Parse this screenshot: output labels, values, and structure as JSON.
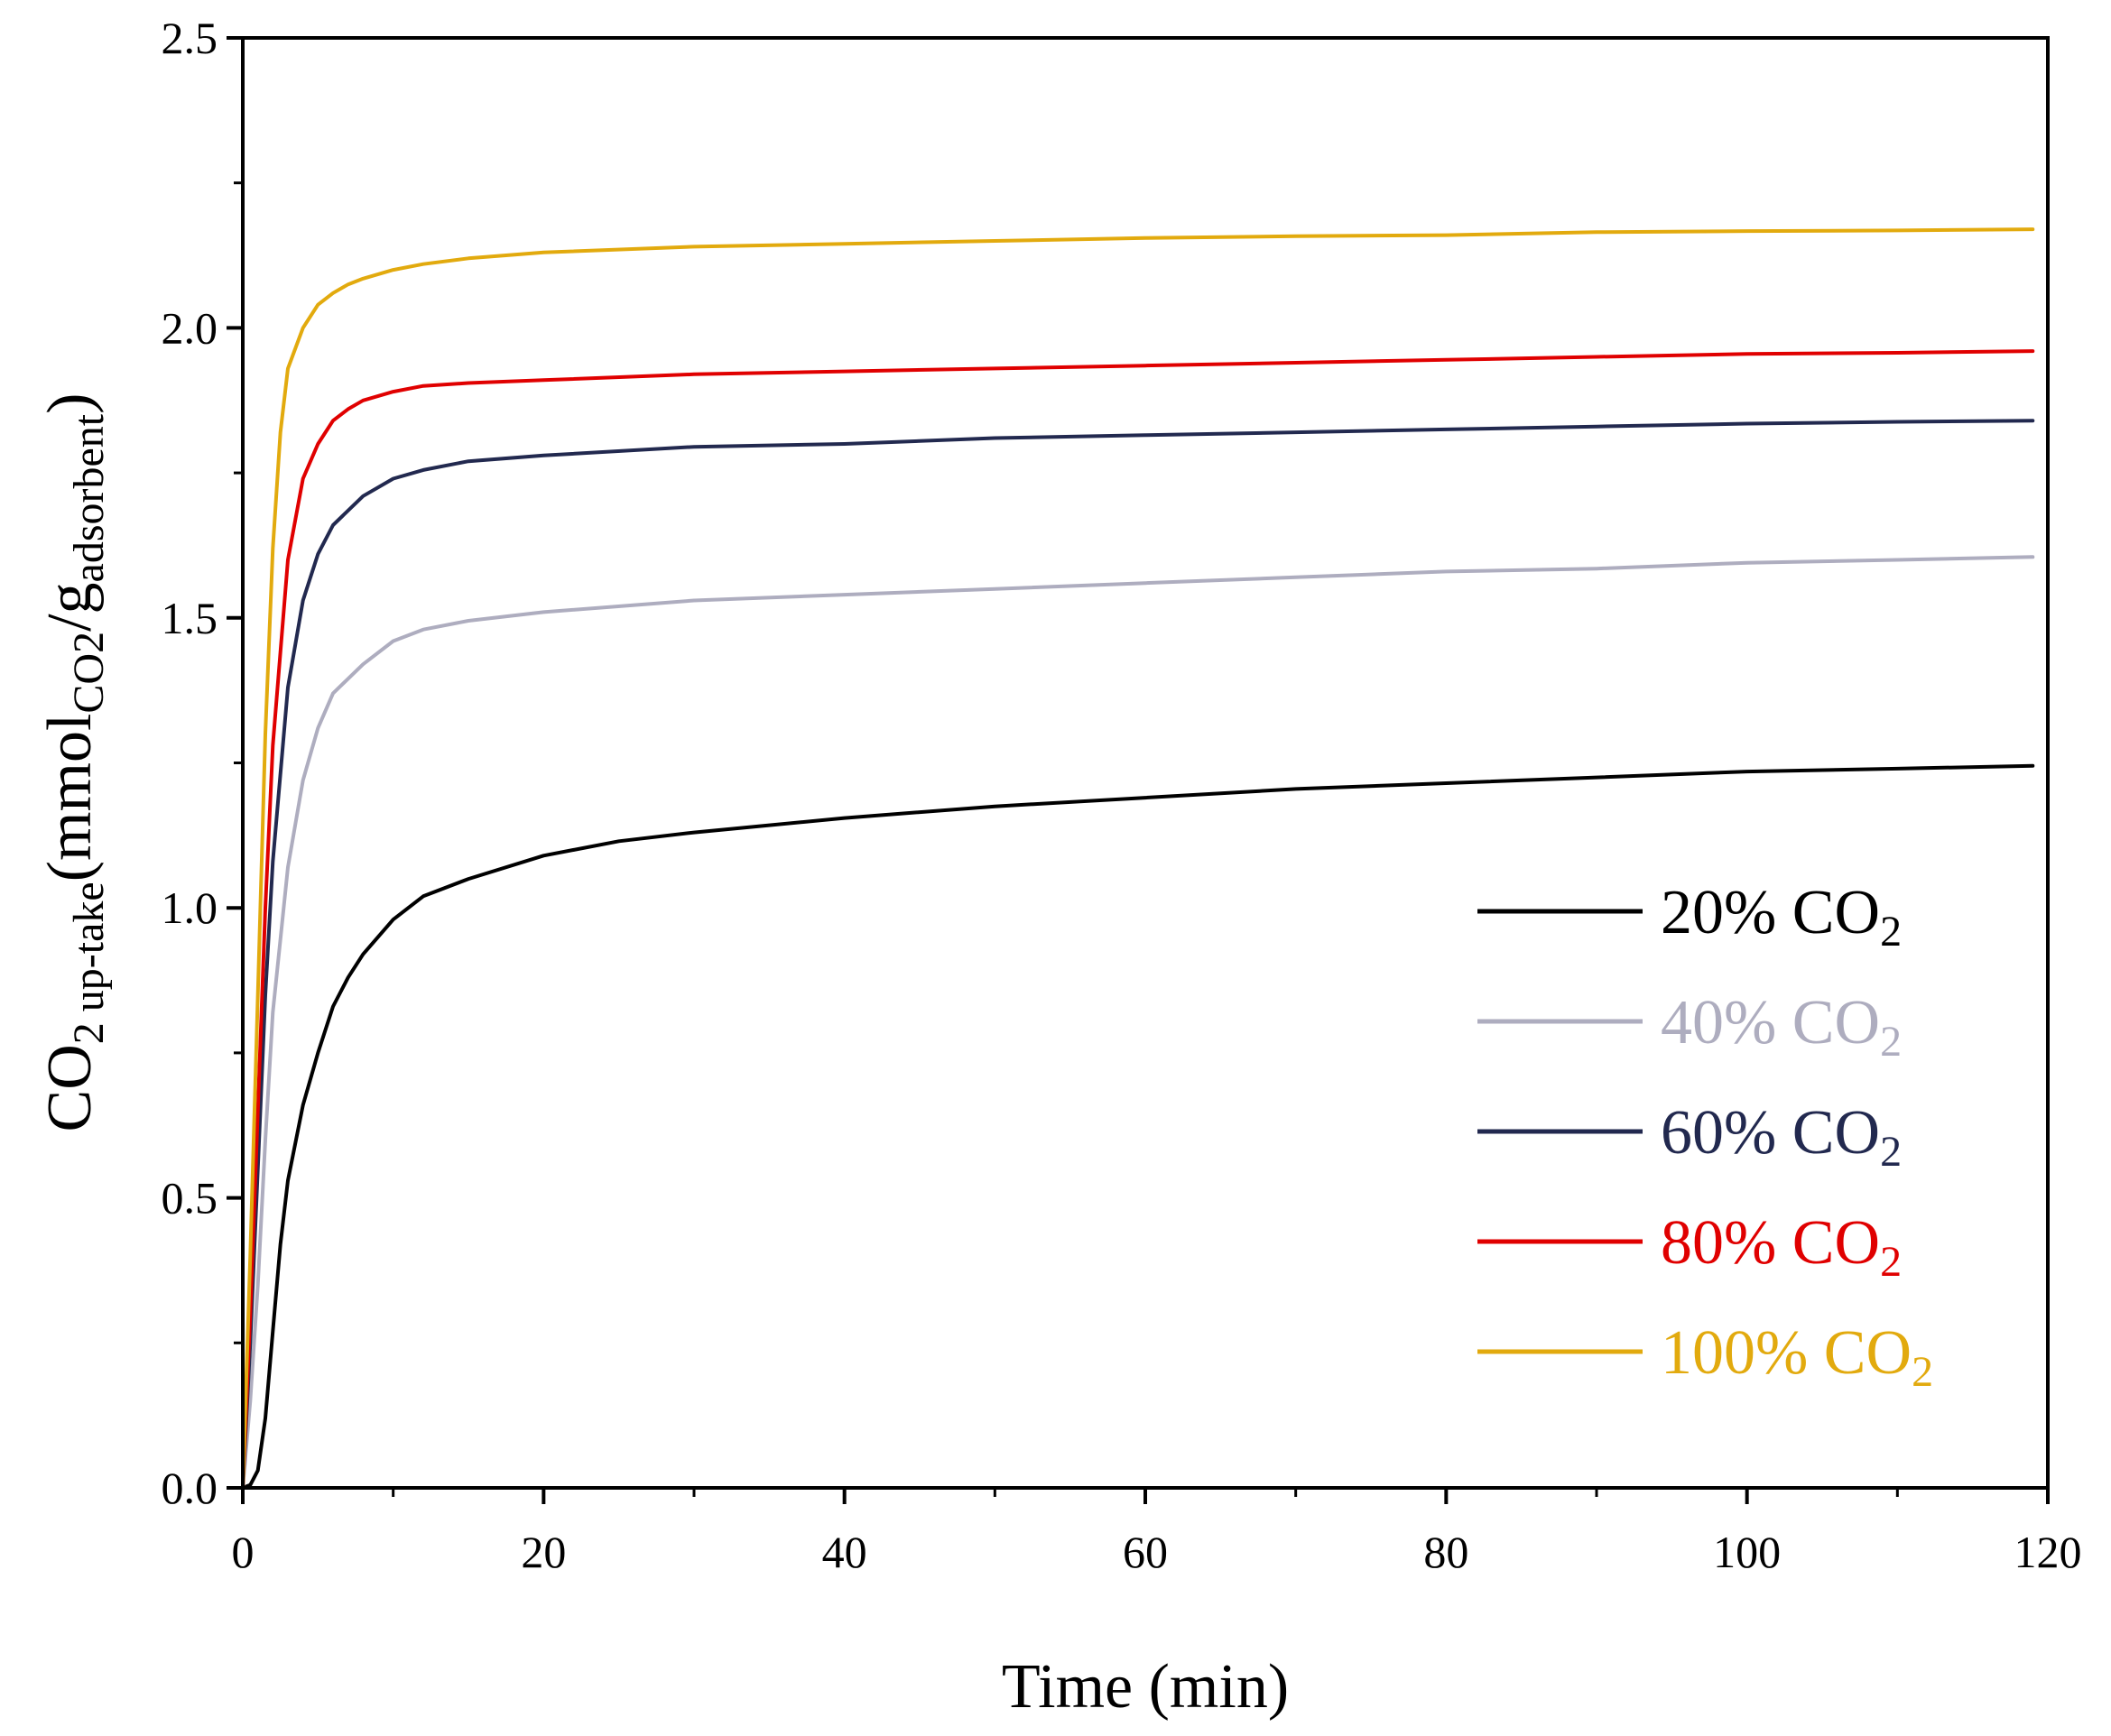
{
  "chart_data": {
    "type": "line",
    "xlabel": "Time (min)",
    "ylabel": {
      "main": "CO",
      "main_sub": "2 up-take",
      "paren_open": "(mmol",
      "unit_sub1": "CO2",
      "unit_mid": "/g",
      "unit_sub2": "adsorbent",
      "paren_close": ")"
    },
    "xlim": [
      0,
      120
    ],
    "ylim": [
      0.0,
      2.5
    ],
    "xticks": [
      0,
      20,
      40,
      60,
      80,
      100,
      120
    ],
    "xtick_labels": [
      "0",
      "20",
      "40",
      "60",
      "80",
      "100",
      "120"
    ],
    "yticks": [
      0.0,
      0.5,
      1.0,
      1.5,
      2.0,
      2.5
    ],
    "ytick_labels": [
      "0.0",
      "0.5",
      "1.0",
      "1.5",
      "2.0",
      "2.5"
    ],
    "xminor": [
      10,
      30,
      50,
      70,
      90,
      110
    ],
    "yminor": [
      0.25,
      0.75,
      1.25,
      1.75,
      2.25
    ],
    "legend_position": "right",
    "series": [
      {
        "name": "20% CO2",
        "label": "20% CO",
        "label_sub": "2",
        "color": "#000000",
        "x": [
          0,
          0.5,
          1,
          1.5,
          2,
          2.5,
          3,
          4,
          5,
          6,
          7,
          8,
          10,
          12,
          15,
          20,
          25,
          30,
          40,
          50,
          60,
          70,
          80,
          90,
          100,
          110,
          119
        ],
        "y": [
          0,
          0.005,
          0.03,
          0.12,
          0.27,
          0.42,
          0.53,
          0.66,
          0.75,
          0.83,
          0.88,
          0.92,
          0.98,
          1.02,
          1.05,
          1.09,
          1.115,
          1.13,
          1.155,
          1.175,
          1.19,
          1.205,
          1.215,
          1.225,
          1.235,
          1.24,
          1.245
        ]
      },
      {
        "name": "40% CO2",
        "label": "40% CO",
        "label_sub": "2",
        "color": "#aeadbf",
        "x": [
          0,
          0.5,
          1,
          1.5,
          2,
          3,
          4,
          5,
          6,
          8,
          10,
          12,
          15,
          20,
          30,
          40,
          50,
          60,
          70,
          80,
          90,
          100,
          110,
          119
        ],
        "y": [
          0,
          0.15,
          0.35,
          0.6,
          0.82,
          1.07,
          1.22,
          1.31,
          1.37,
          1.42,
          1.46,
          1.48,
          1.495,
          1.51,
          1.53,
          1.54,
          1.55,
          1.56,
          1.57,
          1.58,
          1.585,
          1.595,
          1.6,
          1.605
        ]
      },
      {
        "name": "60% CO2",
        "label": "60% CO",
        "label_sub": "2",
        "color": "#22294f",
        "x": [
          0,
          0.5,
          1,
          1.5,
          2,
          3,
          4,
          5,
          6,
          8,
          10,
          12,
          15,
          20,
          30,
          40,
          50,
          60,
          70,
          80,
          90,
          100,
          110,
          119
        ],
        "y": [
          0,
          0.25,
          0.55,
          0.85,
          1.08,
          1.38,
          1.53,
          1.61,
          1.66,
          1.71,
          1.74,
          1.755,
          1.77,
          1.78,
          1.795,
          1.8,
          1.81,
          1.815,
          1.82,
          1.825,
          1.83,
          1.835,
          1.838,
          1.84
        ]
      },
      {
        "name": "80% CO2",
        "label": "80% CO",
        "label_sub": "2",
        "color": "#e00000",
        "x": [
          0,
          0.5,
          1,
          1.5,
          2,
          3,
          4,
          5,
          6,
          7,
          8,
          10,
          12,
          15,
          20,
          30,
          40,
          50,
          60,
          70,
          80,
          90,
          100,
          110,
          119
        ],
        "y": [
          0,
          0.3,
          0.65,
          1.0,
          1.28,
          1.6,
          1.74,
          1.8,
          1.84,
          1.86,
          1.875,
          1.89,
          1.9,
          1.905,
          1.91,
          1.92,
          1.925,
          1.93,
          1.935,
          1.94,
          1.945,
          1.95,
          1.955,
          1.957,
          1.96
        ]
      },
      {
        "name": "100% CO2",
        "label": "100% CO",
        "label_sub": "2",
        "color": "#e2aa0e",
        "x": [
          0,
          0.5,
          1,
          1.5,
          2,
          2.5,
          3,
          4,
          5,
          6,
          7,
          8,
          10,
          12,
          15,
          20,
          30,
          40,
          50,
          60,
          70,
          80,
          90,
          100,
          110,
          119
        ],
        "y": [
          0,
          0.4,
          0.85,
          1.3,
          1.62,
          1.82,
          1.93,
          2.0,
          2.04,
          2.06,
          2.075,
          2.085,
          2.1,
          2.11,
          2.12,
          2.13,
          2.14,
          2.145,
          2.15,
          2.155,
          2.158,
          2.16,
          2.165,
          2.167,
          2.168,
          2.17
        ]
      }
    ]
  }
}
